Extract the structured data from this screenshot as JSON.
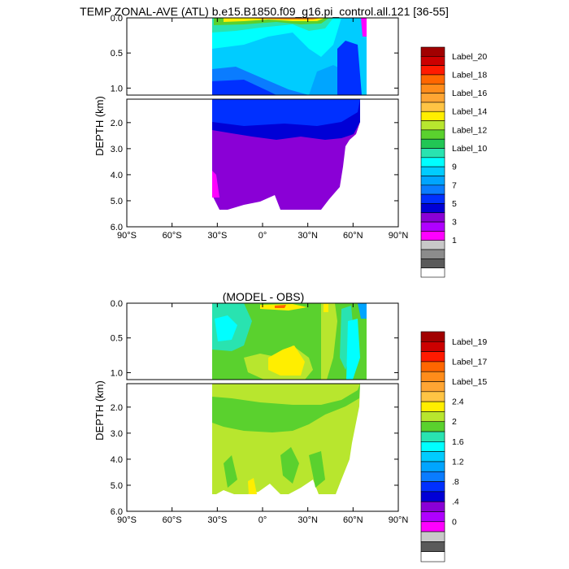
{
  "chart_data": [
    {
      "type": "heatmap",
      "title": "TEMP ZONAL-AVE (ATL) b.e15.B1850.f09_g16.pi_control.all.121 [36-55]",
      "ylabel": "DEPTH (km)",
      "upper_yticks": [
        "0.0",
        "0.5",
        "1.0"
      ],
      "lower_yticks": [
        "2.0",
        "3.0",
        "4.0",
        "5.0",
        "6.0"
      ],
      "xticks": [
        "90°S",
        "60°S",
        "30°S",
        "0°",
        "30°N",
        "60°N",
        "90°N"
      ],
      "legend_labels": [
        "Label_20",
        "Label_18",
        "Label_16",
        "Label_14",
        "Label_12",
        "Label_10",
        "9",
        "7",
        "5",
        "3",
        "1"
      ],
      "legend_colors": [
        "#a10000",
        "#cc0000",
        "#ff1a00",
        "#ff6600",
        "#ff8c1a",
        "#ffa533",
        "#ffc444",
        "#ffee00",
        "#b8e62e",
        "#5ad12e",
        "#22c655",
        "#29e3b0",
        "#00ffff",
        "#00ccff",
        "#00a5ff",
        "#0a7cff",
        "#0030ff",
        "#0000d6",
        "#8a00d6",
        "#b000ff",
        "#ff00ff",
        "#c8c8c8",
        "#8c8c8c",
        "#5a5a5a",
        "#ffffff"
      ]
    },
    {
      "type": "heatmap",
      "title": "(MODEL - OBS)",
      "ylabel": "DEPTH (km)",
      "upper_yticks": [
        "0.0",
        "0.5",
        "1.0"
      ],
      "lower_yticks": [
        "2.0",
        "3.0",
        "4.0",
        "5.0",
        "6.0"
      ],
      "xticks": [
        "90°S",
        "60°S",
        "30°S",
        "0°",
        "30°N",
        "60°N",
        "90°N"
      ],
      "legend_labels": [
        "Label_19",
        "Label_17",
        "Label_15",
        "2.4",
        "2",
        "1.6",
        "1.2",
        ".8",
        ".4",
        "0"
      ],
      "legend_colors": [
        "#a10000",
        "#cc0000",
        "#ff1a00",
        "#ff6600",
        "#ff8c1a",
        "#ffa533",
        "#ffc444",
        "#ffee00",
        "#b8e62e",
        "#5ad12e",
        "#29e3b0",
        "#00ffff",
        "#00ccff",
        "#00a5ff",
        "#0a7cff",
        "#0030ff",
        "#0000d6",
        "#8a00d6",
        "#b000ff",
        "#ff00ff",
        "#c8c8c8",
        "#5a5a5a",
        "#ffffff"
      ]
    }
  ]
}
